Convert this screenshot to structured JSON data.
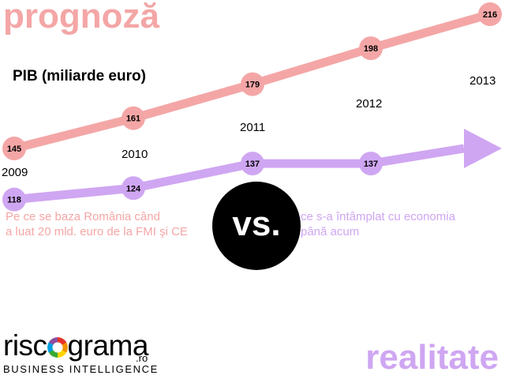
{
  "heading_prognoza": "prognoză",
  "heading_realitate": "realitate",
  "colors": {
    "forecast": "#f4a6a6",
    "reality": "#cfa6f2",
    "vs_bg": "#000000"
  },
  "captions": {
    "left_line1": "Pe ce se baza România când",
    "left_line2": "a luat 20 mld. euro de la FMI şi CE",
    "right_line1": "ce s-a întâmplat cu economia",
    "right_line2": "până acum"
  },
  "vs_label": "vs.",
  "logo": {
    "word_left": "risc",
    "word_right": "grama",
    "suffix": ".ro",
    "tagline": "BUSINESS INTELLIGENCE",
    "icon": "color-ring-icon"
  },
  "chart_data": {
    "type": "line",
    "ylabel": "PIB (miliarde euro)",
    "categories": [
      "2009",
      "2010",
      "2011",
      "2012",
      "2013"
    ],
    "series": [
      {
        "name": "prognoză",
        "values": [
          145,
          161,
          179,
          198,
          216
        ]
      },
      {
        "name": "realitate",
        "values": [
          118,
          124,
          137,
          137,
          null
        ]
      }
    ],
    "reality_arrow": true,
    "grid": false,
    "legend": "none"
  }
}
